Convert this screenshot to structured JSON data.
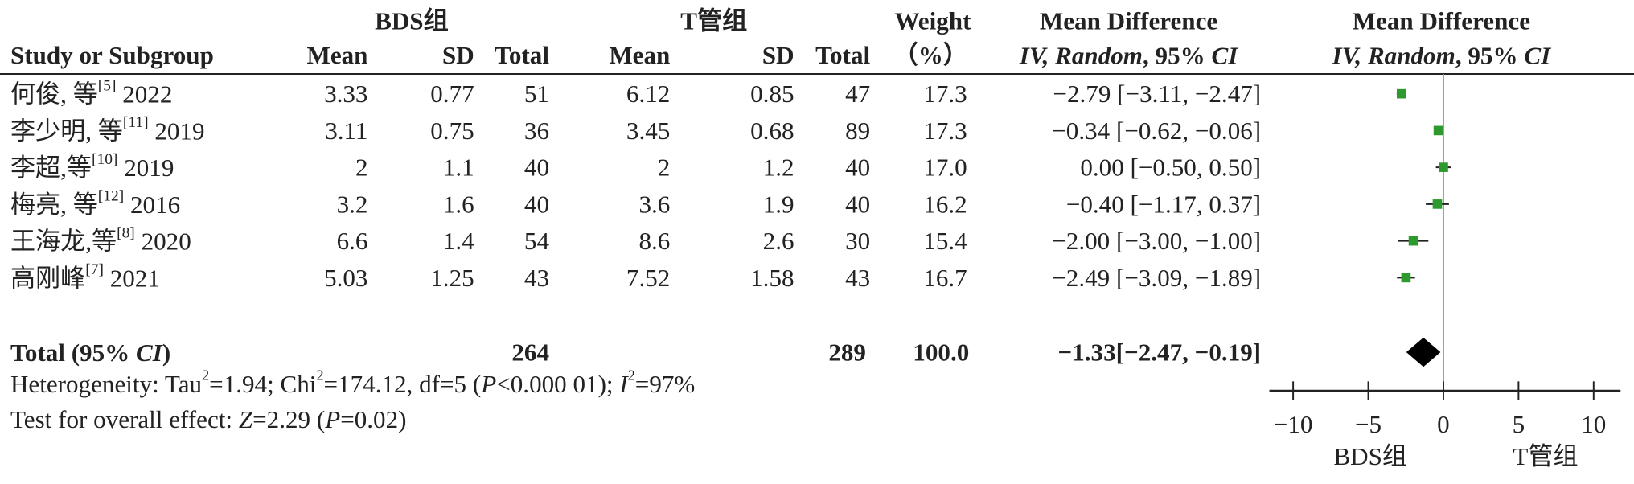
{
  "table": {
    "group_headers": [
      "BDS组",
      "T管组"
    ],
    "columns": [
      "Study or Subgroup",
      "Mean",
      "SD",
      "Total",
      "Mean",
      "SD",
      "Total"
    ],
    "weight_header": [
      "Weight",
      "（%）"
    ],
    "md_header": [
      "Mean Difference",
      "IV, Random",
      ", 95% ",
      "CI"
    ],
    "rows": [
      {
        "study": "何俊, 等",
        "ref": "[5]",
        "year": "2022",
        "cells": [
          "3.33",
          "0.77",
          "51",
          "6.12",
          "0.85",
          "47"
        ],
        "weight": "17.3"
      },
      {
        "study": "李少明, 等",
        "ref": "[11]",
        "year": "2019",
        "cells": [
          "3.11",
          "0.75",
          "36",
          "3.45",
          "0.68",
          "89"
        ],
        "weight": "17.3"
      },
      {
        "study": "李超,等",
        "ref": "[10]",
        "year": "2019",
        "cells": [
          "2",
          "1.1",
          "40",
          "2",
          "1.2",
          "40"
        ],
        "weight": "17.0"
      },
      {
        "study": "梅亮, 等",
        "ref": "[12]",
        "year": "2016",
        "cells": [
          "3.2",
          "1.6",
          "40",
          "3.6",
          "1.9",
          "40"
        ],
        "weight": "16.2"
      },
      {
        "study": "王海龙,等",
        "ref": "[8]",
        "year": "2020",
        "cells": [
          "6.6",
          "1.4",
          "54",
          "8.6",
          "2.6",
          "30"
        ],
        "weight": "15.4"
      },
      {
        "study": "高刚峰",
        "ref": "[7]",
        "year": "2021",
        "cells": [
          "5.03",
          "1.25",
          "43",
          "7.52",
          "1.58",
          "43"
        ],
        "weight": "16.7"
      }
    ],
    "total": {
      "label": [
        "Total (95% ",
        "CI",
        ")"
      ],
      "n1": "264",
      "n2": "289",
      "weight": "100.0"
    },
    "heterogeneity": [
      "Heterogeneity: Tau",
      "2",
      "=1.94; Chi",
      "2",
      "=174.12, df=5 (",
      "P",
      "<0.000 01); ",
      "I",
      "2",
      "=97%"
    ],
    "overall": [
      "Test for overall effect: ",
      "Z",
      "=2.29 (",
      "P",
      "=0.02)"
    ]
  },
  "chart_data": {
    "type": "forest",
    "values": [
      -2.79,
      -0.34,
      0.0,
      -0.4,
      -2.0,
      -2.49
    ],
    "ci_low": [
      -3.11,
      -0.62,
      -0.5,
      -1.17,
      -3.0,
      -3.09
    ],
    "ci_high": [
      -2.47,
      -0.06,
      0.5,
      0.37,
      -1.0,
      -1.89
    ],
    "value_labels": [
      "−2.79 [−3.11, −2.47]",
      "−0.34 [−0.62, −0.06]",
      "0.00 [−0.50, 0.50]",
      "−0.40 [−1.17, 0.37]",
      "−2.00 [−3.00, −1.00]",
      "−2.49 [−3.09, −1.89]"
    ],
    "total": {
      "value": -1.33,
      "ci_low": -2.47,
      "ci_high": -0.19,
      "value_label": "−1.33[−2.47, −0.19]"
    },
    "color": "#2e9a2e",
    "xlim": [
      -12,
      12
    ],
    "xticks": [
      {
        "value": -10,
        "label": "−10"
      },
      {
        "value": -5,
        "label": "−5"
      },
      0,
      5,
      10
    ],
    "xlabels": [
      "BDS组",
      "T管组"
    ]
  }
}
